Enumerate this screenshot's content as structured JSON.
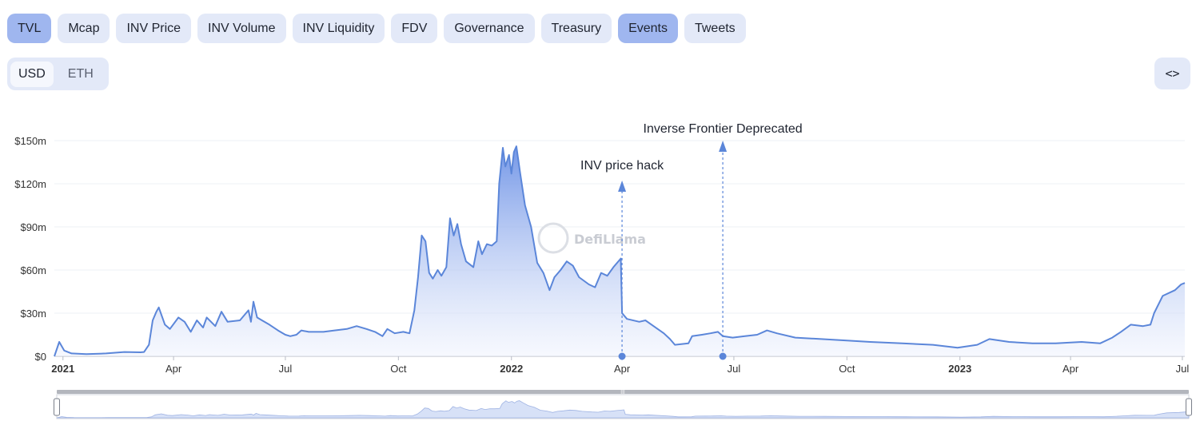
{
  "tabs": [
    {
      "label": "TVL",
      "active": true
    },
    {
      "label": "Mcap",
      "active": false
    },
    {
      "label": "INV Price",
      "active": false
    },
    {
      "label": "INV Volume",
      "active": false
    },
    {
      "label": "INV Liquidity",
      "active": false
    },
    {
      "label": "FDV",
      "active": false
    },
    {
      "label": "Governance",
      "active": false
    },
    {
      "label": "Treasury",
      "active": false
    },
    {
      "label": "Events",
      "active": true
    },
    {
      "label": "Tweets",
      "active": false
    }
  ],
  "currency": {
    "options": [
      "USD",
      "ETH"
    ],
    "selected": "USD"
  },
  "embed_icon": "code-brackets-icon",
  "watermark": {
    "text": "DefiLlama",
    "icon": "llama-logo-icon"
  },
  "colors": {
    "line": "#5b86d9",
    "tab_bg": "#e3e9f8",
    "tab_active": "#9fb6ef",
    "event": "#5b86d9"
  },
  "chart_data": {
    "type": "area",
    "series_name": "TVL",
    "y_ticks": [
      "$0",
      "$30m",
      "$60m",
      "$90m",
      "$120m",
      "$150m"
    ],
    "y_tick_values": [
      0,
      30,
      60,
      90,
      120,
      150
    ],
    "y_unit": "millions USD",
    "ylim": [
      0,
      150
    ],
    "x_range": [
      "2020-12-25",
      "2023-07-03"
    ],
    "x_ticks": [
      {
        "label": "2021",
        "date": "2021-01-01",
        "bold": true
      },
      {
        "label": "Apr",
        "date": "2021-04-01",
        "bold": false
      },
      {
        "label": "Jul",
        "date": "2021-07-01",
        "bold": false
      },
      {
        "label": "Oct",
        "date": "2021-10-01",
        "bold": false
      },
      {
        "label": "2022",
        "date": "2022-01-01",
        "bold": true
      },
      {
        "label": "Apr",
        "date": "2022-04-01",
        "bold": false
      },
      {
        "label": "Jul",
        "date": "2022-07-01",
        "bold": false
      },
      {
        "label": "Oct",
        "date": "2022-10-01",
        "bold": false
      },
      {
        "label": "2023",
        "date": "2023-01-01",
        "bold": true
      },
      {
        "label": "Apr",
        "date": "2023-04-01",
        "bold": false
      },
      {
        "label": "Jul",
        "date": "2023-07-01",
        "bold": false
      }
    ],
    "grid": true,
    "events": [
      {
        "label": "INV price hack",
        "date": "2022-04-01"
      },
      {
        "label": "Inverse Frontier Deprecated",
        "date": "2022-06-22"
      }
    ],
    "points": [
      [
        "2020-12-25",
        0
      ],
      [
        "2020-12-29",
        10
      ],
      [
        "2021-01-02",
        4
      ],
      [
        "2021-01-08",
        2
      ],
      [
        "2021-01-20",
        1.5
      ],
      [
        "2021-02-05",
        2
      ],
      [
        "2021-02-20",
        3
      ],
      [
        "2021-03-05",
        2.8
      ],
      [
        "2021-03-08",
        3
      ],
      [
        "2021-03-12",
        8
      ],
      [
        "2021-03-15",
        25
      ],
      [
        "2021-03-18",
        31
      ],
      [
        "2021-03-20",
        34
      ],
      [
        "2021-03-25",
        22
      ],
      [
        "2021-03-29",
        19
      ],
      [
        "2021-04-05",
        27
      ],
      [
        "2021-04-10",
        24
      ],
      [
        "2021-04-15",
        17
      ],
      [
        "2021-04-20",
        25
      ],
      [
        "2021-04-25",
        20
      ],
      [
        "2021-04-28",
        27
      ],
      [
        "2021-05-05",
        21
      ],
      [
        "2021-05-10",
        31
      ],
      [
        "2021-05-15",
        24
      ],
      [
        "2021-05-25",
        25
      ],
      [
        "2021-06-01",
        32
      ],
      [
        "2021-06-03",
        24
      ],
      [
        "2021-06-05",
        38
      ],
      [
        "2021-06-08",
        27
      ],
      [
        "2021-06-12",
        25
      ],
      [
        "2021-06-18",
        22
      ],
      [
        "2021-06-25",
        18
      ],
      [
        "2021-07-01",
        15
      ],
      [
        "2021-07-05",
        14
      ],
      [
        "2021-07-10",
        15
      ],
      [
        "2021-07-14",
        18
      ],
      [
        "2021-07-20",
        17
      ],
      [
        "2021-08-01",
        17
      ],
      [
        "2021-08-10",
        18
      ],
      [
        "2021-08-20",
        19
      ],
      [
        "2021-08-28",
        21
      ],
      [
        "2021-09-05",
        19
      ],
      [
        "2021-09-12",
        17
      ],
      [
        "2021-09-18",
        14
      ],
      [
        "2021-09-22",
        19
      ],
      [
        "2021-09-28",
        16
      ],
      [
        "2021-10-05",
        17
      ],
      [
        "2021-10-10",
        16
      ],
      [
        "2021-10-14",
        32
      ],
      [
        "2021-10-17",
        55
      ],
      [
        "2021-10-20",
        84
      ],
      [
        "2021-10-23",
        80
      ],
      [
        "2021-10-26",
        58
      ],
      [
        "2021-10-29",
        54
      ],
      [
        "2021-11-02",
        60
      ],
      [
        "2021-11-05",
        56
      ],
      [
        "2021-11-09",
        62
      ],
      [
        "2021-11-12",
        96
      ],
      [
        "2021-11-15",
        84
      ],
      [
        "2021-11-18",
        92
      ],
      [
        "2021-11-21",
        78
      ],
      [
        "2021-11-25",
        66
      ],
      [
        "2021-12-01",
        62
      ],
      [
        "2021-12-05",
        80
      ],
      [
        "2021-12-08",
        71
      ],
      [
        "2021-12-12",
        78
      ],
      [
        "2021-12-16",
        77
      ],
      [
        "2021-12-20",
        80
      ],
      [
        "2021-12-22",
        120
      ],
      [
        "2021-12-25",
        145
      ],
      [
        "2021-12-27",
        132
      ],
      [
        "2021-12-30",
        140
      ],
      [
        "2022-01-01",
        127
      ],
      [
        "2022-01-03",
        142
      ],
      [
        "2022-01-05",
        146
      ],
      [
        "2022-01-08",
        128
      ],
      [
        "2022-01-12",
        105
      ],
      [
        "2022-01-17",
        90
      ],
      [
        "2022-01-22",
        65
      ],
      [
        "2022-01-27",
        58
      ],
      [
        "2022-02-01",
        46
      ],
      [
        "2022-02-05",
        55
      ],
      [
        "2022-02-10",
        60
      ],
      [
        "2022-02-15",
        66
      ],
      [
        "2022-02-20",
        63
      ],
      [
        "2022-02-25",
        55
      ],
      [
        "2022-03-05",
        50
      ],
      [
        "2022-03-10",
        48
      ],
      [
        "2022-03-15",
        58
      ],
      [
        "2022-03-20",
        56
      ],
      [
        "2022-03-25",
        62
      ],
      [
        "2022-03-31",
        68
      ],
      [
        "2022-04-01",
        30
      ],
      [
        "2022-04-05",
        26
      ],
      [
        "2022-04-15",
        24
      ],
      [
        "2022-04-20",
        25
      ],
      [
        "2022-04-25",
        22
      ],
      [
        "2022-05-05",
        16
      ],
      [
        "2022-05-10",
        12
      ],
      [
        "2022-05-14",
        8
      ],
      [
        "2022-05-25",
        9
      ],
      [
        "2022-05-28",
        14
      ],
      [
        "2022-06-05",
        15
      ],
      [
        "2022-06-12",
        16
      ],
      [
        "2022-06-18",
        17
      ],
      [
        "2022-06-22",
        14
      ],
      [
        "2022-06-30",
        13
      ],
      [
        "2022-07-10",
        14
      ],
      [
        "2022-07-20",
        15
      ],
      [
        "2022-07-28",
        18
      ],
      [
        "2022-08-05",
        16
      ],
      [
        "2022-08-20",
        13
      ],
      [
        "2022-09-10",
        12
      ],
      [
        "2022-10-01",
        11
      ],
      [
        "2022-10-20",
        10
      ],
      [
        "2022-11-15",
        9
      ],
      [
        "2022-12-10",
        8
      ],
      [
        "2022-12-30",
        6
      ],
      [
        "2023-01-15",
        8
      ],
      [
        "2023-01-25",
        12
      ],
      [
        "2023-02-10",
        10
      ],
      [
        "2023-03-01",
        9
      ],
      [
        "2023-03-20",
        9
      ],
      [
        "2023-04-10",
        10
      ],
      [
        "2023-04-25",
        9
      ],
      [
        "2023-05-05",
        13
      ],
      [
        "2023-05-12",
        17
      ],
      [
        "2023-05-20",
        22
      ],
      [
        "2023-05-30",
        21
      ],
      [
        "2023-06-05",
        22
      ],
      [
        "2023-06-08",
        30
      ],
      [
        "2023-06-15",
        42
      ],
      [
        "2023-06-25",
        46
      ],
      [
        "2023-06-30",
        50
      ],
      [
        "2023-07-03",
        51
      ]
    ]
  }
}
